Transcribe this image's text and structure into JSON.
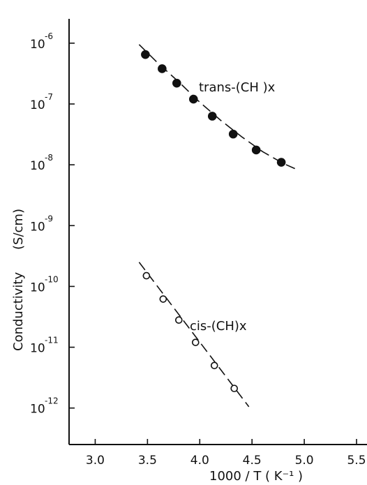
{
  "chart_data": {
    "type": "scatter",
    "title": "",
    "xlabel": "1000 / T ( K⁻¹ )",
    "ylabel_main": "Conductivity",
    "ylabel_unit": "(S/cm)",
    "xlim": [
      2.75,
      5.6
    ],
    "ylim_log10": [
      -12.6,
      -5.6
    ],
    "y_scale": "log",
    "grid": false,
    "x_ticks": [
      3.0,
      3.5,
      4.0,
      4.5,
      5.0,
      5.5
    ],
    "x_tick_labels": [
      "3.0",
      "3.5",
      "4.0",
      "4.5",
      "5.0",
      "5.5"
    ],
    "y_ticks": [
      {
        "exp": -6,
        "base": "10",
        "label": "-6"
      },
      {
        "exp": -7,
        "base": "10",
        "label": "-7"
      },
      {
        "exp": -8,
        "base": "10",
        "label": "-8"
      },
      {
        "exp": -9,
        "base": "10",
        "label": "-9"
      },
      {
        "exp": -10,
        "base": "10",
        "label": "-10"
      },
      {
        "exp": -11,
        "base": "10",
        "label": "-11"
      },
      {
        "exp": -12,
        "base": "10",
        "label": "-12"
      }
    ],
    "series": [
      {
        "name": "trans-(CH )x",
        "marker": "filled-circle",
        "x": [
          3.48,
          3.64,
          3.78,
          3.94,
          4.12,
          4.32,
          4.54,
          4.78
        ],
        "y": [
          6.5e-07,
          3.8e-07,
          2.2e-07,
          1.2e-07,
          6.3e-08,
          3.2e-08,
          1.75e-08,
          1.1e-08
        ],
        "fit": {
          "x": [
            3.42,
            3.6,
            3.8,
            4.0,
            4.2,
            4.4,
            4.6,
            4.8,
            4.92
          ],
          "y": [
            9.5e-07,
            4.7e-07,
            2.3e-07,
            1.07e-07,
            5.4e-08,
            2.9e-08,
            1.65e-08,
            1.05e-08,
            8.5e-09
          ]
        }
      },
      {
        "name": "cis-(CH)x",
        "marker": "open-circle",
        "x": [
          3.49,
          3.65,
          3.8,
          3.96,
          4.14,
          4.33
        ],
        "y": [
          1.5e-10,
          6.2e-11,
          2.8e-11,
          1.2e-11,
          5e-12,
          2.1e-12
        ],
        "fit": {
          "x": [
            3.42,
            4.47
          ],
          "y": [
            2.5e-10,
            1.05e-12
          ]
        }
      }
    ]
  }
}
